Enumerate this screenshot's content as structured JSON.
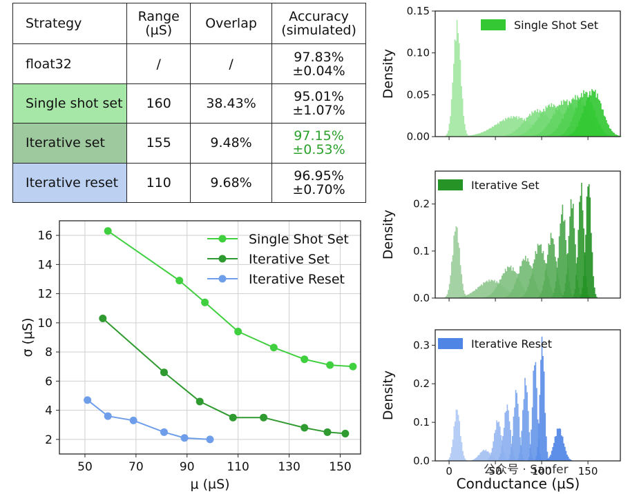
{
  "table": {
    "headers": [
      "Strategy",
      "Range (µS)",
      "Overlap",
      "Accuracy (simulated)"
    ],
    "rows": [
      {
        "strategy": "float32",
        "range": "/",
        "overlap": "/",
        "acc": "97.83%",
        "pm": "±0.04%",
        "bg": "#ffffff",
        "acc_color": "#111111"
      },
      {
        "strategy": "Single shot set",
        "range": "160",
        "overlap": "38.43%",
        "acc": "95.01%",
        "pm": "±1.07%",
        "bg": "#a6e6a6",
        "acc_color": "#111111"
      },
      {
        "strategy": "Iterative set",
        "range": "155",
        "overlap": "9.48%",
        "acc": "97.15%",
        "pm": "±0.53%",
        "bg": "#9ec89e",
        "acc_color": "#2aa02a"
      },
      {
        "strategy": "Iterative reset",
        "range": "110",
        "overlap": "9.68%",
        "acc": "96.95%",
        "pm": "±0.70%",
        "bg": "#bcd0f2",
        "acc_color": "#111111"
      }
    ]
  },
  "chart_data": [
    {
      "type": "line",
      "xlabel": "μ (µS)",
      "ylabel": "σ (µS)",
      "xlim": [
        40,
        158
      ],
      "ylim": [
        1,
        17
      ],
      "xticks": [
        50,
        70,
        90,
        110,
        130,
        150
      ],
      "yticks": [
        2,
        4,
        6,
        8,
        10,
        12,
        14,
        16
      ],
      "grid": true,
      "legend": "top-right",
      "series": [
        {
          "name": "Single Shot Set",
          "color": "#3fcf3f",
          "x": [
            59,
            87,
            97,
            110,
            124,
            136,
            146,
            155
          ],
          "y": [
            16.3,
            12.9,
            11.4,
            9.4,
            8.3,
            7.5,
            7.1,
            7.0
          ]
        },
        {
          "name": "Iterative Set",
          "color": "#2f9a2f",
          "x": [
            57,
            81,
            95,
            108,
            120,
            136,
            145,
            152
          ],
          "y": [
            10.3,
            6.6,
            4.6,
            3.5,
            3.5,
            2.8,
            2.5,
            2.4
          ]
        },
        {
          "name": "Iterative Reset",
          "color": "#6e9eea",
          "x": [
            51,
            59,
            69,
            81,
            89,
            99
          ],
          "y": [
            4.7,
            3.6,
            3.3,
            2.5,
            2.1,
            2.0
          ]
        }
      ]
    },
    {
      "type": "area",
      "legend_label": "Single Shot Set",
      "ylabel": "Density",
      "ylim": [
        0,
        0.15
      ],
      "yticks": [
        "0.00",
        "0.05",
        "0.10",
        "0.15"
      ],
      "color": "#34c934",
      "xlim": [
        -15,
        185
      ],
      "peaks": [
        {
          "center": 8,
          "width": 4,
          "height": 0.14
        },
        {
          "center": 70,
          "width": 20,
          "height": 0.025
        },
        {
          "center": 95,
          "width": 14,
          "height": 0.033
        },
        {
          "center": 110,
          "width": 14,
          "height": 0.04
        },
        {
          "center": 125,
          "width": 13,
          "height": 0.045
        },
        {
          "center": 137,
          "width": 12,
          "height": 0.05
        },
        {
          "center": 146,
          "width": 10,
          "height": 0.056
        },
        {
          "center": 155,
          "width": 10,
          "height": 0.058
        }
      ]
    },
    {
      "type": "area",
      "legend_label": "Iterative Set",
      "ylabel": "Density",
      "ylim": [
        0,
        0.27
      ],
      "yticks": [
        "0.0",
        "0.1",
        "0.2"
      ],
      "color": "#259325",
      "xlim": [
        -15,
        185
      ],
      "peaks": [
        {
          "center": 7,
          "width": 4,
          "height": 0.16
        },
        {
          "center": 45,
          "width": 14,
          "height": 0.04
        },
        {
          "center": 65,
          "width": 10,
          "height": 0.07
        },
        {
          "center": 82,
          "width": 8,
          "height": 0.09
        },
        {
          "center": 97,
          "width": 7,
          "height": 0.12
        },
        {
          "center": 110,
          "width": 5,
          "height": 0.14
        },
        {
          "center": 122,
          "width": 4,
          "height": 0.2
        },
        {
          "center": 132,
          "width": 3.5,
          "height": 0.22
        },
        {
          "center": 142,
          "width": 3,
          "height": 0.25
        },
        {
          "center": 150,
          "width": 3,
          "height": 0.26
        }
      ]
    },
    {
      "type": "area",
      "legend_label": "Iterative Reset",
      "ylabel": "Density",
      "xlabel": "Conductance (µS)",
      "ylim": [
        0,
        0.34
      ],
      "yticks": [
        "0.0",
        "0.1",
        "0.2",
        "0.3"
      ],
      "xticks": [
        "0",
        "50",
        "100",
        "150"
      ],
      "color": "#4f86e6",
      "xlim": [
        -15,
        185
      ],
      "peaks": [
        {
          "center": 8,
          "width": 3.5,
          "height": 0.14
        },
        {
          "center": 38,
          "width": 6,
          "height": 0.03
        },
        {
          "center": 52,
          "width": 4,
          "height": 0.11
        },
        {
          "center": 62,
          "width": 3.5,
          "height": 0.15
        },
        {
          "center": 72,
          "width": 3,
          "height": 0.19
        },
        {
          "center": 82,
          "width": 3,
          "height": 0.22
        },
        {
          "center": 92,
          "width": 2.5,
          "height": 0.28
        },
        {
          "center": 100,
          "width": 2.5,
          "height": 0.33
        },
        {
          "center": 118,
          "width": 5,
          "height": 0.09
        }
      ]
    }
  ],
  "watermark": "公众号 · Sanfer"
}
